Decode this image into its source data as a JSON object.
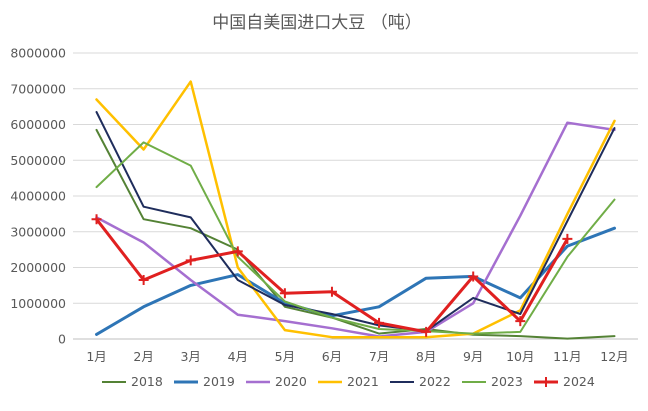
{
  "chart_data": {
    "type": "line",
    "title": "中国自美国进口大豆 （吨）",
    "xlabel": "",
    "ylabel": "",
    "categories": [
      "1月",
      "2月",
      "3月",
      "4月",
      "5月",
      "6月",
      "7月",
      "8月",
      "9月",
      "10月",
      "11月",
      "12月"
    ],
    "ylim": [
      0,
      8000000
    ],
    "yticks": [
      0,
      1000000,
      2000000,
      3000000,
      4000000,
      5000000,
      6000000,
      7000000,
      8000000
    ],
    "grid": true,
    "legend_position": "bottom",
    "series": [
      {
        "name": "2018",
        "color": "#548235",
        "width": 2,
        "markers": false,
        "values": [
          5850000,
          3350000,
          3100000,
          2500000,
          900000,
          600000,
          150000,
          280000,
          120000,
          80000,
          10000,
          80000
        ]
      },
      {
        "name": "2019",
        "color": "#2e75b6",
        "width": 3,
        "markers": false,
        "values": [
          130000,
          900000,
          1500000,
          1800000,
          1000000,
          650000,
          900000,
          1700000,
          1750000,
          1150000,
          2600000,
          3100000
        ]
      },
      {
        "name": "2020",
        "color": "#a56fd0",
        "width": 2.5,
        "markers": false,
        "values": [
          3400000,
          2700000,
          1650000,
          680000,
          500000,
          300000,
          70000,
          200000,
          1000000,
          3450000,
          6050000,
          5850000
        ]
      },
      {
        "name": "2021",
        "color": "#ffc000",
        "width": 2.5,
        "markers": false,
        "values": [
          6700000,
          5300000,
          7200000,
          2000000,
          250000,
          50000,
          50000,
          50000,
          150000,
          800000,
          3500000,
          6100000
        ]
      },
      {
        "name": "2022",
        "color": "#1f2d5c",
        "width": 2,
        "markers": false,
        "values": [
          6350000,
          3700000,
          3400000,
          1650000,
          950000,
          700000,
          380000,
          220000,
          1150000,
          700000,
          3300000,
          5900000
        ]
      },
      {
        "name": "2023",
        "color": "#70ad47",
        "width": 2,
        "markers": false,
        "values": [
          4250000,
          5500000,
          4850000,
          2300000,
          1050000,
          600000,
          280000,
          220000,
          150000,
          200000,
          2300000,
          3900000
        ]
      },
      {
        "name": "2024",
        "color": "#e02020",
        "width": 3,
        "markers": true,
        "values": [
          3350000,
          1650000,
          2200000,
          2450000,
          1280000,
          1320000,
          450000,
          200000,
          1750000,
          500000,
          2800000,
          null
        ]
      }
    ]
  }
}
